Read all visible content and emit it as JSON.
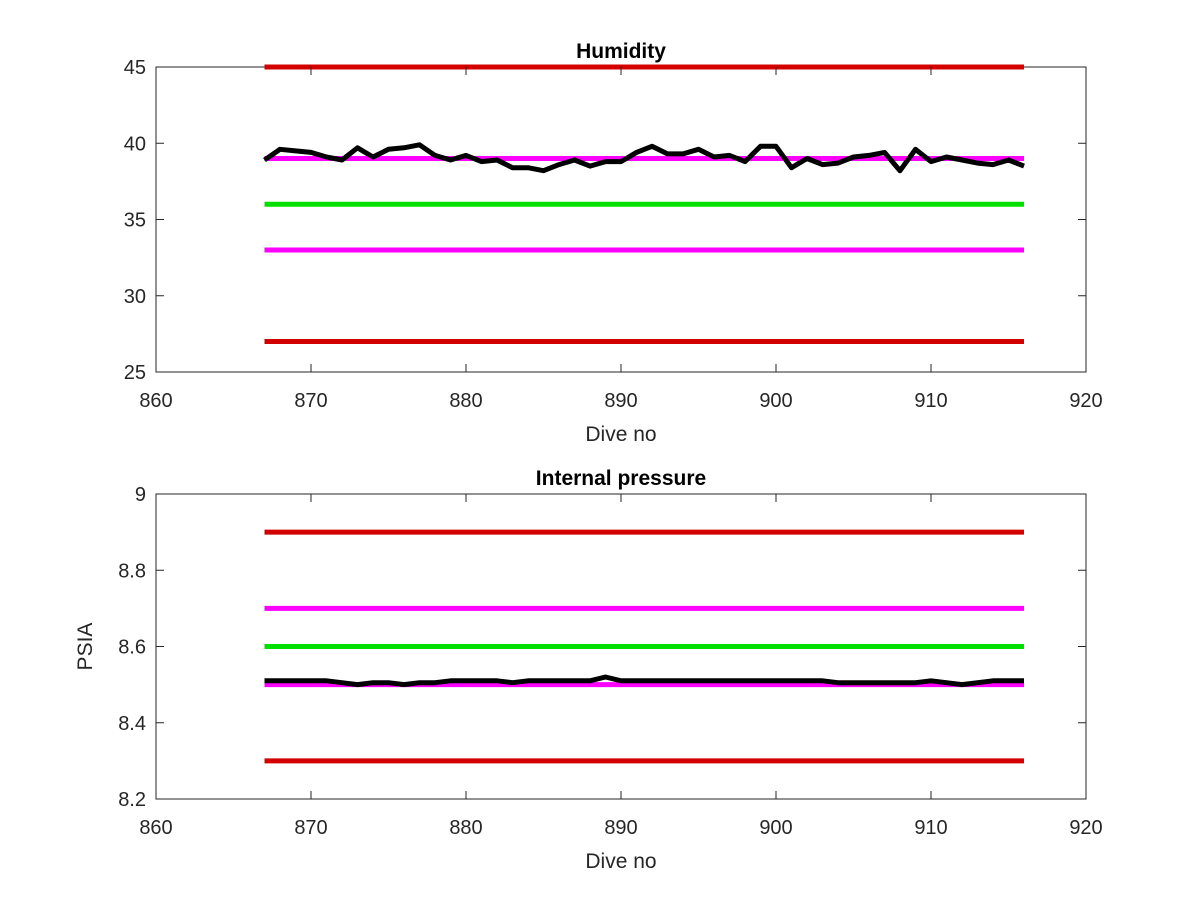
{
  "chart_data": [
    {
      "type": "line",
      "title": "Humidity",
      "xlabel": "Dive no",
      "ylabel": "",
      "xlim": [
        860,
        920
      ],
      "ylim": [
        25,
        45
      ],
      "xticks": [
        "860",
        "870",
        "880",
        "890",
        "900",
        "910",
        "920"
      ],
      "yticks": [
        "25",
        "30",
        "35",
        "40",
        "45"
      ],
      "grid": false,
      "x": [
        867,
        868,
        869,
        870,
        871,
        872,
        873,
        874,
        875,
        876,
        877,
        878,
        879,
        880,
        881,
        882,
        883,
        884,
        885,
        886,
        887,
        888,
        889,
        890,
        891,
        892,
        893,
        894,
        895,
        896,
        897,
        898,
        899,
        900,
        901,
        902,
        903,
        904,
        905,
        906,
        907,
        908,
        909,
        910,
        911,
        912,
        913,
        914,
        915,
        916
      ],
      "series": [
        {
          "color": "#000000",
          "values": [
            38.9,
            39.6,
            39.5,
            39.4,
            39.1,
            38.9,
            39.7,
            39.1,
            39.6,
            39.7,
            39.9,
            39.2,
            38.9,
            39.2,
            38.8,
            38.9,
            38.4,
            38.4,
            38.2,
            38.6,
            38.9,
            38.5,
            38.8,
            38.8,
            39.4,
            39.8,
            39.3,
            39.3,
            39.6,
            39.1,
            39.2,
            38.8,
            39.8,
            39.8,
            38.4,
            39.0,
            38.6,
            38.7,
            39.1,
            39.2,
            39.4,
            38.2,
            39.6,
            38.8,
            39.1,
            38.9,
            38.7,
            38.6,
            38.9,
            38.5
          ]
        }
      ],
      "threshold_lines": [
        {
          "y": 45,
          "x": [
            867,
            916
          ],
          "color": "#d40000"
        },
        {
          "y": 39,
          "x": [
            867,
            916
          ],
          "color": "#ff00ff"
        },
        {
          "y": 36,
          "x": [
            867,
            916
          ],
          "color": "#00e000"
        },
        {
          "y": 33,
          "x": [
            867,
            916
          ],
          "color": "#ff00ff"
        },
        {
          "y": 27,
          "x": [
            867,
            916
          ],
          "color": "#d40000"
        }
      ]
    },
    {
      "type": "line",
      "title": "Internal pressure",
      "xlabel": "Dive no",
      "ylabel": "PSIA",
      "xlim": [
        860,
        920
      ],
      "ylim": [
        8.2,
        9
      ],
      "xticks": [
        "860",
        "870",
        "880",
        "890",
        "900",
        "910",
        "920"
      ],
      "yticks": [
        "8.2",
        "8.4",
        "8.6",
        "8.8",
        "9"
      ],
      "grid": false,
      "x": [
        867,
        868,
        869,
        870,
        871,
        872,
        873,
        874,
        875,
        876,
        877,
        878,
        879,
        880,
        881,
        882,
        883,
        884,
        885,
        886,
        887,
        888,
        889,
        890,
        891,
        892,
        893,
        894,
        895,
        896,
        897,
        898,
        899,
        900,
        901,
        902,
        903,
        904,
        905,
        906,
        907,
        908,
        909,
        910,
        911,
        912,
        913,
        914,
        915,
        916
      ],
      "series": [
        {
          "color": "#000000",
          "values": [
            8.51,
            8.51,
            8.51,
            8.51,
            8.51,
            8.505,
            8.5,
            8.505,
            8.505,
            8.5,
            8.505,
            8.505,
            8.51,
            8.51,
            8.51,
            8.51,
            8.505,
            8.51,
            8.51,
            8.51,
            8.51,
            8.51,
            8.52,
            8.51,
            8.51,
            8.51,
            8.51,
            8.51,
            8.51,
            8.51,
            8.51,
            8.51,
            8.51,
            8.51,
            8.51,
            8.51,
            8.51,
            8.505,
            8.505,
            8.505,
            8.505,
            8.505,
            8.505,
            8.51,
            8.505,
            8.5,
            8.505,
            8.51,
            8.51,
            8.51
          ]
        }
      ],
      "threshold_lines": [
        {
          "y": 8.9,
          "x": [
            867,
            916
          ],
          "color": "#d40000"
        },
        {
          "y": 8.7,
          "x": [
            867,
            916
          ],
          "color": "#ff00ff"
        },
        {
          "y": 8.6,
          "x": [
            867,
            916
          ],
          "color": "#00e000"
        },
        {
          "y": 8.5,
          "x": [
            867,
            916
          ],
          "color": "#ff00ff"
        },
        {
          "y": 8.3,
          "x": [
            867,
            916
          ],
          "color": "#d40000"
        }
      ]
    }
  ]
}
